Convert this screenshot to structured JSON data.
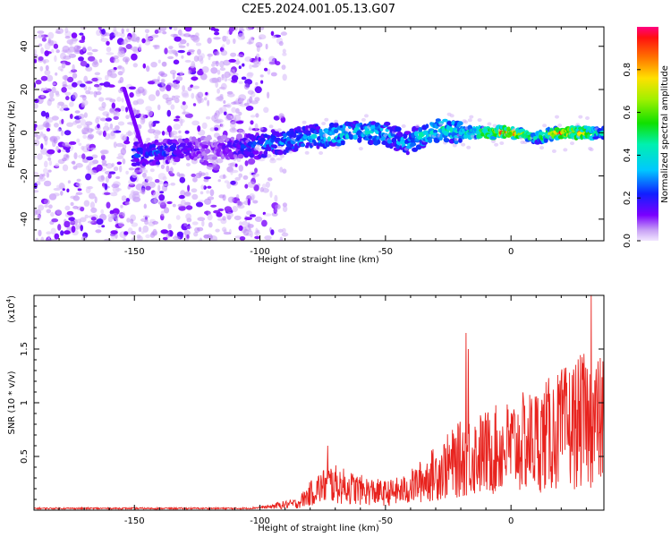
{
  "title": "C2E5.2024.001.05.13.G07",
  "chart_data": [
    {
      "type": "heatmap",
      "xlabel": "Height of straight line (km)",
      "ylabel": "Frequency (Hz)",
      "xlim": [
        -190,
        37
      ],
      "ylim": [
        -50,
        49
      ],
      "xticks": [
        -150,
        -100,
        -50,
        0
      ],
      "yticks": [
        -40,
        -20,
        0,
        20,
        40
      ],
      "colorbar": {
        "label": "Normalized spectral amplitude",
        "range": [
          0,
          1
        ],
        "ticks": [
          0.0,
          0.2,
          0.4,
          0.6,
          0.8
        ]
      },
      "ridge": [
        {
          "x": -145,
          "y": -10,
          "amp": 0.25
        },
        {
          "x": -140,
          "y": -9,
          "amp": 0.28
        },
        {
          "x": -120,
          "y": -7,
          "amp": 0.1
        },
        {
          "x": -100,
          "y": -6,
          "amp": 0.3
        },
        {
          "x": -90,
          "y": -4,
          "amp": 0.35
        },
        {
          "x": -80,
          "y": -2,
          "amp": 0.35
        },
        {
          "x": -70,
          "y": -1,
          "amp": 0.45
        },
        {
          "x": -60,
          "y": 0,
          "amp": 0.42
        },
        {
          "x": -50,
          "y": 0,
          "amp": 0.4
        },
        {
          "x": -42,
          "y": -5,
          "amp": 0.35
        },
        {
          "x": -35,
          "y": -1,
          "amp": 0.45
        },
        {
          "x": -28,
          "y": 2,
          "amp": 0.5
        },
        {
          "x": -20,
          "y": 0,
          "amp": 0.45
        },
        {
          "x": -10,
          "y": 0,
          "amp": 0.75
        },
        {
          "x": 0,
          "y": 0,
          "amp": 0.92
        },
        {
          "x": 10,
          "y": -2,
          "amp": 0.5
        },
        {
          "x": 20,
          "y": 0,
          "amp": 0.9
        },
        {
          "x": 28,
          "y": 0,
          "amp": 0.85
        },
        {
          "x": 35,
          "y": 0,
          "amp": 0.45
        }
      ]
    },
    {
      "type": "line",
      "xlabel": "Height of straight line (km)",
      "ylabel": "SNR (10 * v/v)",
      "multiplier": "(x10",
      "multiplier_exp": "4",
      "multiplier_close": ")",
      "xlim": [
        -190,
        37
      ],
      "ylim": [
        0,
        2.0
      ],
      "xticks": [
        -150,
        -100,
        -50,
        0
      ],
      "yticks": [
        0.5,
        1.0,
        1.5
      ],
      "color": "#e8231e",
      "envelope": [
        {
          "x": -190,
          "y": 0.03
        },
        {
          "x": -105,
          "y": 0.03
        },
        {
          "x": -95,
          "y": 0.06
        },
        {
          "x": -85,
          "y": 0.1
        },
        {
          "x": -78,
          "y": 0.3
        },
        {
          "x": -72,
          "y": 0.4
        },
        {
          "x": -60,
          "y": 0.3
        },
        {
          "x": -50,
          "y": 0.25
        },
        {
          "x": -42,
          "y": 0.3
        },
        {
          "x": -30,
          "y": 0.55
        },
        {
          "x": -18,
          "y": 0.8
        },
        {
          "x": -10,
          "y": 0.85
        },
        {
          "x": 0,
          "y": 0.95
        },
        {
          "x": 10,
          "y": 1.05
        },
        {
          "x": 20,
          "y": 1.2
        },
        {
          "x": 30,
          "y": 1.35
        },
        {
          "x": 37,
          "y": 1.3
        }
      ],
      "spikes": [
        {
          "x": -73,
          "y": 0.6
        },
        {
          "x": -18,
          "y": 1.65
        },
        {
          "x": -17,
          "y": 1.5
        },
        {
          "x": 32,
          "y": 2.0
        },
        {
          "x": 31,
          "y": 0.55
        },
        {
          "x": 11,
          "y": 0.42
        }
      ]
    }
  ]
}
